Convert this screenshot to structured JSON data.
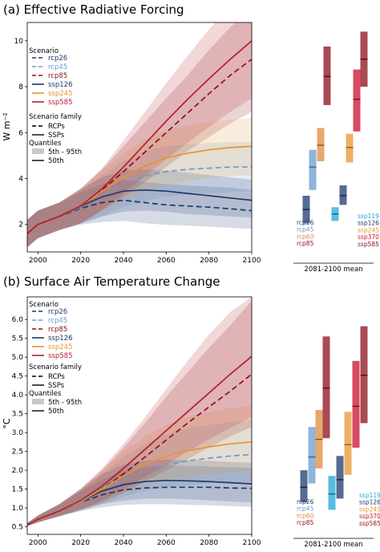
{
  "chart_data": [
    {
      "type": "line",
      "title": "(a) Effective Radiative Forcing",
      "ylabel": "W m⁻²",
      "xlabel": "",
      "xlim": [
        1995,
        2100
      ],
      "ylim": [
        0.8,
        10.8
      ],
      "xticks": [
        "2000",
        "2020",
        "2040",
        "2060",
        "2080",
        "2100"
      ],
      "xtick_values": [
        2000,
        2020,
        2040,
        2060,
        2080,
        2100
      ],
      "yticks": [
        "2",
        "4",
        "6",
        "8",
        "10"
      ],
      "ytick_values": [
        2,
        4,
        6,
        8,
        10
      ],
      "grid": false,
      "legend": {
        "placement": "top-left",
        "scenario_title": "Scenario",
        "family_title": "Scenario family",
        "quantiles_title": "Quantiles",
        "family_items": [
          "RCPs",
          "SSPs"
        ],
        "quantile_items": [
          "5th - 95th",
          "50th"
        ]
      },
      "series": [
        {
          "name": "rcp26",
          "family": "rcp",
          "color": "#1e3a6e",
          "x": [
            1995,
            2000,
            2010,
            2020,
            2030,
            2040,
            2050,
            2060,
            2070,
            2080,
            2090,
            2100
          ],
          "y": [
            1.6,
            2.0,
            2.35,
            2.7,
            2.95,
            3.05,
            2.95,
            2.85,
            2.8,
            2.75,
            2.68,
            2.6
          ],
          "lo": [
            1.0,
            1.4,
            1.75,
            2.0,
            2.1,
            2.15,
            2.05,
            1.98,
            1.95,
            1.9,
            1.85,
            1.8
          ],
          "hi": [
            2.2,
            2.6,
            2.95,
            3.4,
            3.75,
            3.95,
            3.85,
            3.75,
            3.7,
            3.65,
            3.6,
            3.5
          ]
        },
        {
          "name": "rcp45",
          "family": "rcp",
          "color": "#6a9bd1",
          "x": [
            1995,
            2000,
            2010,
            2020,
            2030,
            2040,
            2050,
            2060,
            2070,
            2080,
            2090,
            2100
          ],
          "y": [
            1.6,
            2.0,
            2.35,
            2.75,
            3.25,
            3.75,
            4.1,
            4.3,
            4.4,
            4.45,
            4.5,
            4.5
          ],
          "lo": [
            1.0,
            1.4,
            1.75,
            2.0,
            2.35,
            2.75,
            3.0,
            3.2,
            3.3,
            3.35,
            3.4,
            3.45
          ],
          "hi": [
            2.2,
            2.6,
            2.95,
            3.45,
            4.15,
            4.75,
            5.2,
            5.4,
            5.5,
            5.55,
            5.6,
            5.6
          ]
        },
        {
          "name": "rcp85",
          "family": "rcp",
          "color": "#8b0f1a",
          "x": [
            1995,
            2000,
            2010,
            2020,
            2030,
            2040,
            2050,
            2060,
            2070,
            2080,
            2090,
            2100
          ],
          "y": [
            1.6,
            2.0,
            2.35,
            2.8,
            3.5,
            4.3,
            5.15,
            6.0,
            6.85,
            7.7,
            8.5,
            9.2
          ],
          "lo": [
            1.0,
            1.4,
            1.75,
            2.05,
            2.6,
            3.2,
            3.85,
            4.5,
            5.2,
            5.8,
            6.4,
            6.9
          ],
          "hi": [
            2.2,
            2.6,
            2.95,
            3.55,
            4.4,
            5.4,
            6.45,
            7.5,
            8.5,
            9.6,
            10.6,
            11.4
          ]
        },
        {
          "name": "ssp126",
          "family": "ssp",
          "color": "#1e3a6e",
          "x": [
            1995,
            2000,
            2010,
            2020,
            2030,
            2040,
            2050,
            2060,
            2070,
            2080,
            2090,
            2100
          ],
          "y": [
            1.6,
            2.0,
            2.35,
            2.8,
            3.2,
            3.45,
            3.5,
            3.45,
            3.35,
            3.25,
            3.15,
            3.05
          ],
          "lo": [
            1.0,
            1.4,
            1.75,
            2.05,
            2.35,
            2.55,
            2.6,
            2.55,
            2.45,
            2.4,
            2.35,
            2.3
          ],
          "hi": [
            2.2,
            2.6,
            2.95,
            3.55,
            4.05,
            4.35,
            4.4,
            4.35,
            4.25,
            4.15,
            4.05,
            3.95
          ]
        },
        {
          "name": "ssp245",
          "family": "ssp",
          "color": "#e69532",
          "x": [
            1995,
            2000,
            2010,
            2020,
            2030,
            2040,
            2050,
            2060,
            2070,
            2080,
            2090,
            2100
          ],
          "y": [
            1.6,
            2.0,
            2.35,
            2.8,
            3.45,
            4.05,
            4.55,
            4.9,
            5.1,
            5.25,
            5.35,
            5.4
          ],
          "lo": [
            1.0,
            1.4,
            1.75,
            2.05,
            2.55,
            3.0,
            3.4,
            3.7,
            3.9,
            4.0,
            4.1,
            4.15
          ],
          "hi": [
            2.2,
            2.6,
            2.95,
            3.55,
            4.35,
            5.1,
            5.7,
            6.1,
            6.3,
            6.45,
            6.55,
            6.65
          ]
        },
        {
          "name": "ssp585",
          "family": "ssp",
          "color": "#b51f2e",
          "x": [
            1995,
            2000,
            2010,
            2020,
            2030,
            2040,
            2050,
            2060,
            2070,
            2080,
            2090,
            2100
          ],
          "y": [
            1.6,
            2.0,
            2.35,
            2.8,
            3.55,
            4.5,
            5.5,
            6.5,
            7.45,
            8.35,
            9.2,
            10.0
          ],
          "lo": [
            1.0,
            1.4,
            1.75,
            2.05,
            2.65,
            3.35,
            4.1,
            4.85,
            5.55,
            6.25,
            6.9,
            7.5
          ],
          "hi": [
            2.2,
            2.6,
            2.95,
            3.55,
            4.45,
            5.65,
            6.9,
            8.15,
            9.35,
            10.5,
            11.5,
            12.4
          ]
        }
      ],
      "side_panel": {
        "label": "2081-2100 mean",
        "left_labels": [
          {
            "text": "rcp26",
            "color": "#1e3a6e"
          },
          {
            "text": "rcp45",
            "color": "#6a9bd1"
          },
          {
            "text": "rcp60",
            "color": "#e08a3c"
          },
          {
            "text": "rcp85",
            "color": "#8b0f1a"
          }
        ],
        "right_labels": [
          {
            "text": "ssp119",
            "color": "#1fa8d6"
          },
          {
            "text": "ssp126",
            "color": "#1e3a6e"
          },
          {
            "text": "ssp245",
            "color": "#e69532"
          },
          {
            "text": "ssp370",
            "color": "#c8102e"
          },
          {
            "text": "ssp585",
            "color": "#8b0f1a"
          }
        ],
        "bars": [
          {
            "name": "rcp26",
            "color": "#1e3a6e",
            "lo": 2.05,
            "median": 2.65,
            "hi": 3.25
          },
          {
            "name": "rcp45",
            "color": "#6a9bd1",
            "lo": 3.5,
            "median": 4.5,
            "hi": 5.25
          },
          {
            "name": "rcp60",
            "color": "#e08a3c",
            "lo": 4.75,
            "median": 5.45,
            "hi": 6.2
          },
          {
            "name": "rcp85",
            "color": "#8b0f1a",
            "lo": 7.2,
            "median": 8.45,
            "hi": 9.75
          },
          {
            "name": "ssp119",
            "color": "#1fa8d6",
            "lo": 2.15,
            "median": 2.45,
            "hi": 2.75
          },
          {
            "name": "ssp126",
            "color": "#1e3a6e",
            "lo": 2.85,
            "median": 3.25,
            "hi": 3.7
          },
          {
            "name": "ssp245",
            "color": "#e69532",
            "lo": 4.7,
            "median": 5.35,
            "hi": 5.95
          },
          {
            "name": "ssp370",
            "color": "#c8102e",
            "lo": 6.05,
            "median": 7.45,
            "hi": 8.75
          },
          {
            "name": "ssp585",
            "color": "#8b0f1a",
            "lo": 8.0,
            "median": 9.2,
            "hi": 10.4
          }
        ]
      }
    },
    {
      "type": "line",
      "title": "(b) Surface Air Temperature Change",
      "ylabel": "°C",
      "xlabel": "",
      "xlim": [
        1995,
        2100
      ],
      "ylim": [
        0.3,
        6.6
      ],
      "xticks": [
        "2000",
        "2020",
        "2040",
        "2060",
        "2080",
        "2100"
      ],
      "xtick_values": [
        2000,
        2020,
        2040,
        2060,
        2080,
        2100
      ],
      "yticks": [
        "0.5",
        "1.0",
        "1.5",
        "2.0",
        "2.5",
        "3.0",
        "3.5",
        "4.0",
        "4.5",
        "5.0",
        "5.5",
        "6.0"
      ],
      "ytick_values": [
        0.5,
        1.0,
        1.5,
        2.0,
        2.5,
        3.0,
        3.5,
        4.0,
        4.5,
        5.0,
        5.5,
        6.0
      ],
      "grid": false,
      "legend": {
        "placement": "top-left",
        "scenario_title": "Scenario",
        "family_title": "Scenario family",
        "quantiles_title": "Quantiles",
        "family_items": [
          "RCPs",
          "SSPs"
        ],
        "quantile_items": [
          "5th - 95th",
          "50th"
        ]
      },
      "series": [
        {
          "name": "rcp26",
          "family": "rcp",
          "color": "#1e3a6e",
          "x": [
            1995,
            2000,
            2010,
            2020,
            2030,
            2040,
            2050,
            2060,
            2070,
            2080,
            2090,
            2100
          ],
          "y": [
            0.55,
            0.7,
            0.92,
            1.15,
            1.35,
            1.48,
            1.53,
            1.55,
            1.55,
            1.55,
            1.53,
            1.52
          ],
          "lo": [
            0.52,
            0.62,
            0.78,
            0.92,
            1.02,
            1.08,
            1.1,
            1.1,
            1.08,
            1.07,
            1.05,
            1.03
          ],
          "hi": [
            0.6,
            0.8,
            1.1,
            1.45,
            1.75,
            1.98,
            2.08,
            2.12,
            2.12,
            2.1,
            2.08,
            2.06
          ]
        },
        {
          "name": "rcp45",
          "family": "rcp",
          "color": "#6a9bd1",
          "x": [
            1995,
            2000,
            2010,
            2020,
            2030,
            2040,
            2050,
            2060,
            2070,
            2080,
            2090,
            2100
          ],
          "y": [
            0.55,
            0.7,
            0.92,
            1.15,
            1.45,
            1.75,
            2.0,
            2.15,
            2.25,
            2.32,
            2.38,
            2.42
          ],
          "lo": [
            0.52,
            0.62,
            0.78,
            0.92,
            1.1,
            1.3,
            1.45,
            1.55,
            1.6,
            1.65,
            1.68,
            1.7
          ],
          "hi": [
            0.6,
            0.8,
            1.1,
            1.45,
            1.9,
            2.35,
            2.7,
            2.95,
            3.1,
            3.2,
            3.28,
            3.35
          ]
        },
        {
          "name": "rcp85",
          "family": "rcp",
          "color": "#8b0f1a",
          "x": [
            1995,
            2000,
            2010,
            2020,
            2030,
            2040,
            2050,
            2060,
            2070,
            2080,
            2090,
            2100
          ],
          "y": [
            0.55,
            0.7,
            0.92,
            1.18,
            1.5,
            1.9,
            2.35,
            2.8,
            3.25,
            3.68,
            4.1,
            4.55
          ],
          "lo": [
            0.52,
            0.62,
            0.78,
            0.95,
            1.15,
            1.4,
            1.7,
            2.0,
            2.3,
            2.6,
            2.9,
            3.15
          ],
          "hi": [
            0.6,
            0.8,
            1.1,
            1.5,
            2.0,
            2.6,
            3.25,
            3.95,
            4.6,
            5.25,
            5.85,
            6.5
          ]
        },
        {
          "name": "ssp126",
          "family": "ssp",
          "color": "#1e3a6e",
          "x": [
            1995,
            2000,
            2010,
            2020,
            2030,
            2040,
            2050,
            2060,
            2070,
            2080,
            2090,
            2100
          ],
          "y": [
            0.55,
            0.7,
            0.92,
            1.18,
            1.45,
            1.62,
            1.7,
            1.73,
            1.72,
            1.7,
            1.67,
            1.64
          ],
          "lo": [
            0.52,
            0.62,
            0.78,
            0.95,
            1.1,
            1.2,
            1.25,
            1.25,
            1.23,
            1.2,
            1.17,
            1.15
          ],
          "hi": [
            0.6,
            0.8,
            1.1,
            1.5,
            1.9,
            2.15,
            2.25,
            2.28,
            2.27,
            2.25,
            2.22,
            2.2
          ]
        },
        {
          "name": "ssp245",
          "family": "ssp",
          "color": "#e69532",
          "x": [
            1995,
            2000,
            2010,
            2020,
            2030,
            2040,
            2050,
            2060,
            2070,
            2080,
            2090,
            2100
          ],
          "y": [
            0.55,
            0.7,
            0.92,
            1.18,
            1.5,
            1.85,
            2.15,
            2.38,
            2.52,
            2.62,
            2.7,
            2.75
          ],
          "lo": [
            0.52,
            0.62,
            0.78,
            0.95,
            1.15,
            1.38,
            1.58,
            1.72,
            1.82,
            1.88,
            1.93,
            1.97
          ],
          "hi": [
            0.6,
            0.8,
            1.1,
            1.5,
            2.0,
            2.5,
            2.9,
            3.2,
            3.42,
            3.55,
            3.65,
            3.72
          ]
        },
        {
          "name": "ssp585",
          "family": "ssp",
          "color": "#b51f2e",
          "x": [
            1995,
            2000,
            2010,
            2020,
            2030,
            2040,
            2050,
            2060,
            2070,
            2080,
            2090,
            2100
          ],
          "y": [
            0.55,
            0.7,
            0.92,
            1.2,
            1.58,
            2.05,
            2.55,
            3.05,
            3.55,
            4.05,
            4.55,
            5.02
          ],
          "lo": [
            0.52,
            0.62,
            0.78,
            0.97,
            1.2,
            1.5,
            1.82,
            2.15,
            2.5,
            2.82,
            3.12,
            3.42
          ],
          "hi": [
            0.6,
            0.8,
            1.1,
            1.52,
            2.05,
            2.7,
            3.4,
            4.15,
            4.9,
            5.6,
            6.2,
            6.6
          ]
        }
      ],
      "side_panel": {
        "label": "2081-2100 mean",
        "left_labels": [
          {
            "text": "rcp26",
            "color": "#1e3a6e"
          },
          {
            "text": "rcp45",
            "color": "#6a9bd1"
          },
          {
            "text": "rcp60",
            "color": "#e08a3c"
          },
          {
            "text": "rcp85",
            "color": "#8b0f1a"
          }
        ],
        "right_labels": [
          {
            "text": "ssp119",
            "color": "#1fa8d6"
          },
          {
            "text": "ssp126",
            "color": "#1e3a6e"
          },
          {
            "text": "ssp245",
            "color": "#e69532"
          },
          {
            "text": "ssp370",
            "color": "#c8102e"
          },
          {
            "text": "ssp585",
            "color": "#8b0f1a"
          }
        ],
        "bars": [
          {
            "name": "rcp26",
            "color": "#1e3a6e",
            "lo": 1.15,
            "median": 1.55,
            "hi": 2.0
          },
          {
            "name": "rcp45",
            "color": "#6a9bd1",
            "lo": 1.65,
            "median": 2.35,
            "hi": 3.15
          },
          {
            "name": "rcp60",
            "color": "#e08a3c",
            "lo": 2.05,
            "median": 2.82,
            "hi": 3.6
          },
          {
            "name": "rcp85",
            "color": "#8b0f1a",
            "lo": 2.85,
            "median": 4.18,
            "hi": 5.55
          },
          {
            "name": "ssp119",
            "color": "#1fa8d6",
            "lo": 0.95,
            "median": 1.37,
            "hi": 1.85
          },
          {
            "name": "ssp126",
            "color": "#1e3a6e",
            "lo": 1.25,
            "median": 1.75,
            "hi": 2.38
          },
          {
            "name": "ssp245",
            "color": "#e69532",
            "lo": 1.88,
            "median": 2.68,
            "hi": 3.55
          },
          {
            "name": "ssp370",
            "color": "#c8102e",
            "lo": 2.6,
            "median": 3.7,
            "hi": 4.9
          },
          {
            "name": "ssp585",
            "color": "#8b0f1a",
            "lo": 3.25,
            "median": 4.52,
            "hi": 5.82
          }
        ]
      }
    }
  ]
}
